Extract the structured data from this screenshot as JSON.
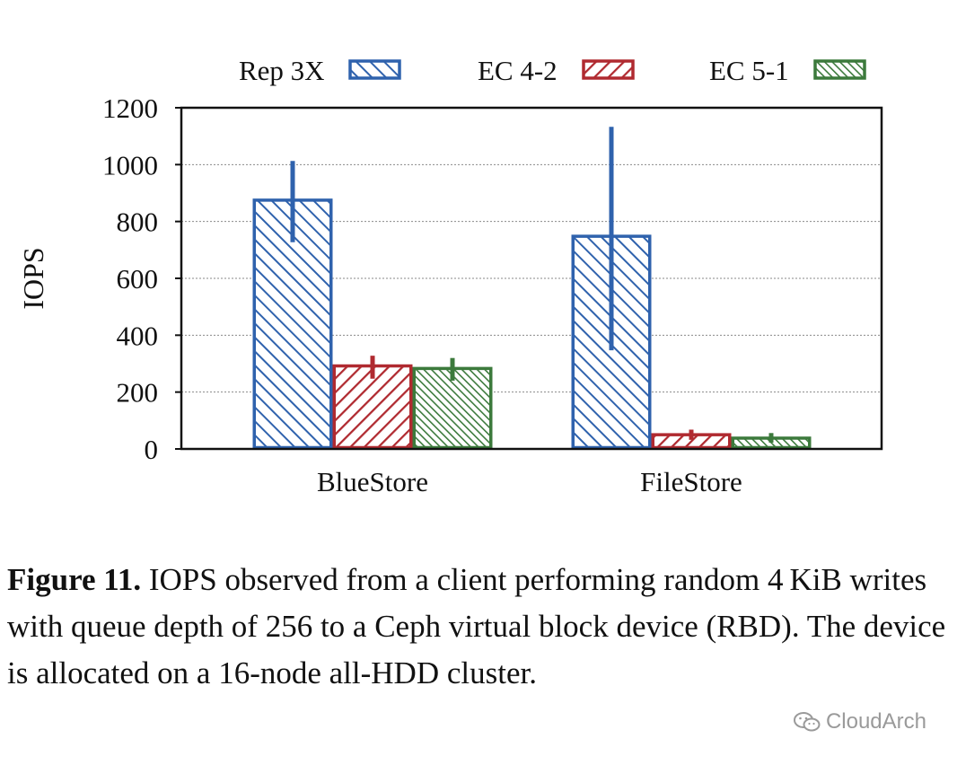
{
  "chart_data": {
    "type": "bar",
    "categories": [
      "BlueStore",
      "FileStore"
    ],
    "series": [
      {
        "name": "Rep 3X",
        "values": [
          875,
          748
        ],
        "error_low": [
          735,
          355
        ],
        "error_high": [
          1005,
          1125
        ],
        "color": "#2f62ad",
        "pattern": "diag-back"
      },
      {
        "name": "EC 4-2",
        "values": [
          292,
          50
        ],
        "error_low": [
          255,
          40
        ],
        "error_high": [
          320,
          60
        ],
        "color": "#b02a30",
        "pattern": "diag-fwd"
      },
      {
        "name": "EC 5-1",
        "values": [
          283,
          38
        ],
        "error_low": [
          248,
          30
        ],
        "error_high": [
          312,
          48
        ],
        "color": "#3c7a3c",
        "pattern": "dense"
      }
    ],
    "ylabel": "IOPS",
    "xlabel": "",
    "title": "",
    "ylim": [
      0,
      1200
    ],
    "yticks": [
      0,
      200,
      400,
      600,
      800,
      1000,
      1200
    ],
    "grid": true,
    "legend_position": "top"
  },
  "caption": {
    "label": "Figure 11.",
    "text": " IOPS observed from a client performing random 4 KiB writes with queue depth of 256 to a Ceph virtual block device (RBD). The device is allocated on a 16-node all-HDD cluster."
  },
  "watermark": {
    "text": "CloudArch",
    "icon": "wechat-icon"
  }
}
